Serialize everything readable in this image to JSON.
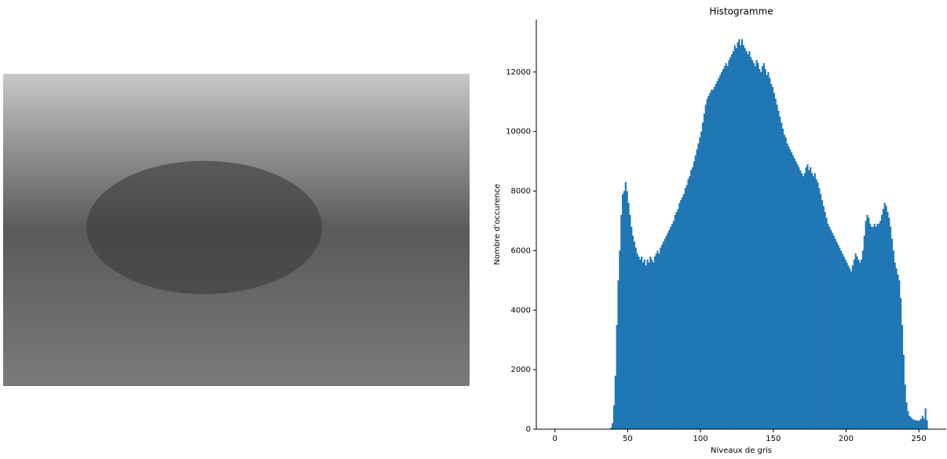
{
  "chart_data": {
    "type": "histogram",
    "title": "Histogramme",
    "x_label": "Niveaux de gris",
    "y_label": "Nombre d'occurence",
    "color": "#1f77b4",
    "bins": [
      0,
      1,
      2,
      3,
      4,
      5,
      6,
      7,
      8,
      9,
      10,
      11,
      12,
      13,
      14,
      15,
      16,
      17,
      18,
      19,
      20,
      21,
      22,
      23,
      24,
      25,
      26,
      27,
      28,
      29,
      30,
      31,
      32,
      33,
      34,
      35,
      36,
      37,
      38,
      39,
      40,
      41,
      42,
      43,
      44,
      45,
      46,
      47,
      48,
      49,
      50,
      51,
      52,
      53,
      54,
      55,
      56,
      57,
      58,
      59,
      60,
      61,
      62,
      63,
      64,
      65,
      66,
      67,
      68,
      69,
      70,
      71,
      72,
      73,
      74,
      75,
      76,
      77,
      78,
      79,
      80,
      81,
      82,
      83,
      84,
      85,
      86,
      87,
      88,
      89,
      90,
      91,
      92,
      93,
      94,
      95,
      96,
      97,
      98,
      99,
      100,
      101,
      102,
      103,
      104,
      105,
      106,
      107,
      108,
      109,
      110,
      111,
      112,
      113,
      114,
      115,
      116,
      117,
      118,
      119,
      120,
      121,
      122,
      123,
      124,
      125,
      126,
      127,
      128,
      129,
      130,
      131,
      132,
      133,
      134,
      135,
      136,
      137,
      138,
      139,
      140,
      141,
      142,
      143,
      144,
      145,
      146,
      147,
      148,
      149,
      150,
      151,
      152,
      153,
      154,
      155,
      156,
      157,
      158,
      159,
      160,
      161,
      162,
      163,
      164,
      165,
      166,
      167,
      168,
      169,
      170,
      171,
      172,
      173,
      174,
      175,
      176,
      177,
      178,
      179,
      180,
      181,
      182,
      183,
      184,
      185,
      186,
      187,
      188,
      189,
      190,
      191,
      192,
      193,
      194,
      195,
      196,
      197,
      198,
      199,
      200,
      201,
      202,
      203,
      204,
      205,
      206,
      207,
      208,
      209,
      210,
      211,
      212,
      213,
      214,
      215,
      216,
      217,
      218,
      219,
      220,
      221,
      222,
      223,
      224,
      225,
      226,
      227,
      228,
      229,
      230,
      231,
      232,
      233,
      234,
      235,
      236,
      237,
      238,
      239,
      240,
      241,
      242,
      243,
      244,
      245,
      246,
      247,
      248,
      249,
      250,
      251,
      252,
      253,
      254,
      255,
      256
    ],
    "counts": [
      0,
      0,
      0,
      0,
      0,
      0,
      0,
      0,
      0,
      0,
      0,
      0,
      0,
      0,
      0,
      0,
      0,
      0,
      0,
      0,
      0,
      0,
      0,
      0,
      0,
      0,
      0,
      0,
      0,
      0,
      0,
      0,
      0,
      0,
      0,
      0,
      0,
      0,
      50,
      200,
      800,
      1800,
      3500,
      5000,
      6000,
      7200,
      7900,
      8000,
      8300,
      8000,
      7600,
      7200,
      6800,
      6500,
      6300,
      6100,
      5900,
      5800,
      5700,
      5800,
      5600,
      5700,
      5500,
      5700,
      5600,
      5800,
      5700,
      5600,
      5800,
      5900,
      6000,
      5900,
      6100,
      6200,
      6300,
      6400,
      6500,
      6600,
      6700,
      6800,
      6900,
      7000,
      7200,
      7300,
      7400,
      7600,
      7700,
      7800,
      7900,
      8100,
      8200,
      8400,
      8500,
      8700,
      8800,
      9000,
      9200,
      9400,
      9600,
      9800,
      10000,
      10300,
      10600,
      10900,
      11100,
      11200,
      11300,
      11400,
      11400,
      11500,
      11600,
      11700,
      11800,
      11900,
      12000,
      12100,
      12200,
      12300,
      12200,
      12400,
      12500,
      12600,
      12700,
      12900,
      12800,
      13000,
      13100,
      12900,
      13100,
      12900,
      12800,
      12700,
      12600,
      12700,
      12500,
      12400,
      12300,
      12200,
      12400,
      12300,
      12100,
      12000,
      12200,
      12300,
      12100,
      11900,
      12000,
      11800,
      11600,
      11500,
      11300,
      11100,
      10900,
      10700,
      10500,
      10300,
      10100,
      9900,
      9800,
      9600,
      9500,
      9400,
      9300,
      9200,
      9100,
      9000,
      8900,
      8800,
      8700,
      8600,
      8500,
      8600,
      8800,
      8900,
      8700,
      8800,
      8600,
      8500,
      8600,
      8400,
      8300,
      8100,
      7900,
      7700,
      7500,
      7300,
      7100,
      6900,
      6800,
      6700,
      6600,
      6500,
      6400,
      6300,
      6200,
      6100,
      6000,
      5900,
      5800,
      5700,
      5600,
      5500,
      5400,
      5300,
      5500,
      5700,
      5900,
      5800,
      5700,
      5600,
      5700,
      6000,
      6500,
      7000,
      7200,
      7100,
      6900,
      6800,
      6800,
      6900,
      6800,
      6900,
      6900,
      7000,
      7200,
      7400,
      7600,
      7500,
      7300,
      7100,
      6800,
      6400,
      6000,
      5600,
      5400,
      5200,
      5000,
      4400,
      3500,
      2500,
      1500,
      900,
      600,
      450,
      400,
      350,
      320,
      300,
      300,
      280,
      300,
      350,
      450,
      350,
      700,
      300
    ],
    "xlim": [
      -12.8,
      268.8
    ],
    "xticks": [
      0,
      50,
      100,
      150,
      200,
      250
    ],
    "ylim": [
      0,
      13760
    ],
    "yticks": [
      0,
      2000,
      4000,
      6000,
      8000,
      10000,
      12000
    ]
  }
}
